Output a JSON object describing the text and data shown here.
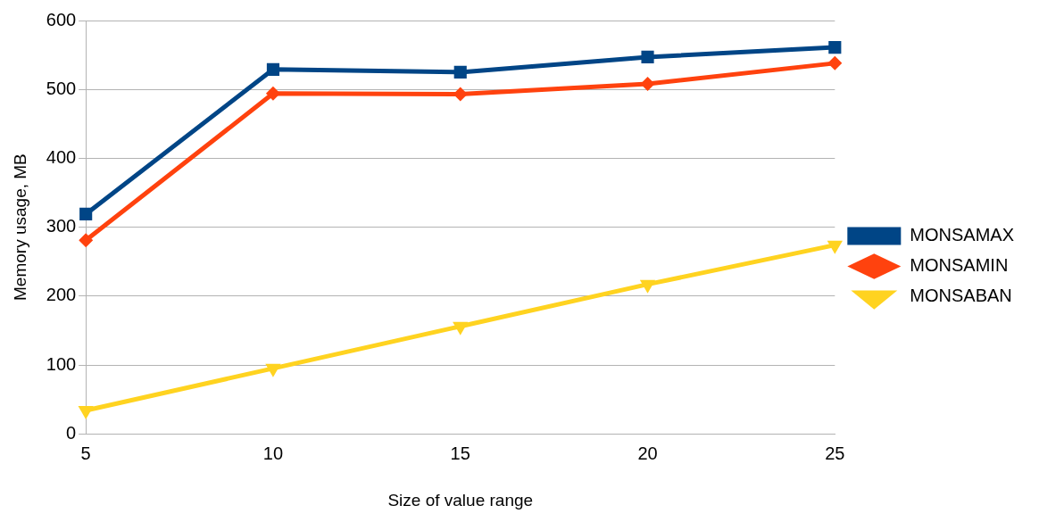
{
  "chart_data": {
    "type": "line",
    "xlabel": "Size of value range",
    "ylabel": "Memory usage, MB",
    "categories": [
      "5",
      "10",
      "15",
      "20",
      "25"
    ],
    "series": [
      {
        "name": "MONSAMAX",
        "color": "#004586",
        "marker": "square",
        "values": [
          319,
          529,
          525,
          547,
          561
        ]
      },
      {
        "name": "MONSAMIN",
        "color": "#ff420e",
        "marker": "diamond",
        "values": [
          281,
          494,
          493,
          508,
          538
        ]
      },
      {
        "name": "MONSABAN",
        "color": "#ffd320",
        "marker": "triangle",
        "values": [
          34,
          95,
          156,
          217,
          274
        ]
      }
    ],
    "ylim": [
      0,
      600
    ],
    "yticks": [
      0,
      100,
      200,
      300,
      400,
      500,
      600
    ],
    "grid": "y",
    "legend": "right",
    "line_style": "solid"
  }
}
